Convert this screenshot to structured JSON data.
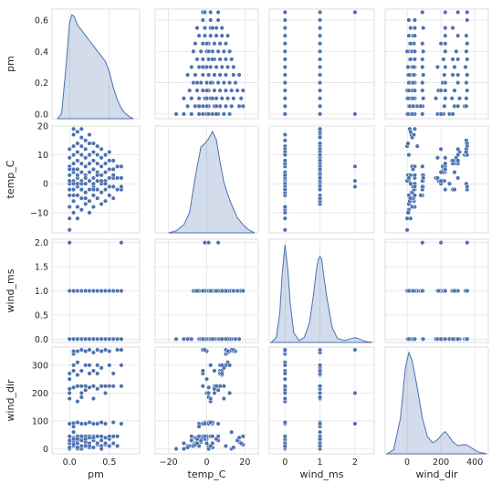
{
  "chart_data": {
    "type": "scatter",
    "grid": true,
    "variables": [
      {
        "name": "pm",
        "label": "pm",
        "lim": [
          -0.22,
          0.88
        ],
        "ticks": [
          0.0,
          0.5
        ],
        "tick_labels": [
          "0.0",
          "0.5"
        ],
        "row_ticks": [
          0.0,
          0.2,
          0.4,
          0.6
        ],
        "row_tick_labels": [
          "0.0",
          "0.2",
          "0.4",
          "0.6"
        ]
      },
      {
        "name": "temp_C",
        "label": "temp_C",
        "lim": [
          -27,
          27
        ],
        "ticks": [
          -20,
          0,
          20
        ],
        "tick_labels": [
          "−20",
          "0",
          "20"
        ],
        "row_ticks": [
          -10,
          0,
          10,
          20
        ],
        "row_tick_labels": [
          "−10",
          "0",
          "10",
          "20"
        ]
      },
      {
        "name": "wind_ms",
        "label": "wind_ms",
        "lim": [
          -0.45,
          2.55
        ],
        "ticks": [
          0,
          1,
          2
        ],
        "tick_labels": [
          "0",
          "1",
          "2"
        ],
        "row_ticks": [
          0.0,
          0.5,
          1.0,
          1.5,
          2.0
        ],
        "row_tick_labels": [
          "0.0",
          "0.5",
          "1.0",
          "1.5",
          "2.0"
        ]
      },
      {
        "name": "wind_dir",
        "label": "wind_dir",
        "lim": [
          -130,
          480
        ],
        "ticks": [
          0,
          200,
          400
        ],
        "tick_labels": [
          "0",
          "200",
          "400"
        ],
        "row_ticks": [
          0,
          100,
          200,
          300
        ],
        "row_tick_labels": [
          "0",
          "100",
          "200",
          "300"
        ]
      }
    ],
    "row_lims": [
      [
        -0.03,
        0.67
      ],
      [
        -17,
        20
      ],
      [
        -0.07,
        2.07
      ],
      [
        -18,
        365
      ]
    ],
    "points": {
      "pm": [
        0.0,
        0.0,
        0.0,
        0.0,
        0.0,
        0.0,
        0.0,
        0.0,
        0.0,
        0.0,
        0.0,
        0.05,
        0.05,
        0.05,
        0.05,
        0.05,
        0.05,
        0.05,
        0.05,
        0.05,
        0.05,
        0.05,
        0.05,
        0.1,
        0.1,
        0.1,
        0.1,
        0.1,
        0.1,
        0.1,
        0.1,
        0.1,
        0.1,
        0.1,
        0.1,
        0.15,
        0.15,
        0.15,
        0.15,
        0.15,
        0.15,
        0.15,
        0.15,
        0.15,
        0.15,
        0.15,
        0.2,
        0.2,
        0.2,
        0.2,
        0.2,
        0.2,
        0.2,
        0.2,
        0.2,
        0.2,
        0.25,
        0.25,
        0.25,
        0.25,
        0.25,
        0.25,
        0.25,
        0.25,
        0.25,
        0.25,
        0.3,
        0.3,
        0.3,
        0.3,
        0.3,
        0.3,
        0.3,
        0.3,
        0.3,
        0.35,
        0.35,
        0.35,
        0.35,
        0.35,
        0.35,
        0.35,
        0.35,
        0.4,
        0.4,
        0.4,
        0.4,
        0.4,
        0.4,
        0.4,
        0.4,
        0.45,
        0.45,
        0.45,
        0.45,
        0.45,
        0.45,
        0.45,
        0.5,
        0.5,
        0.5,
        0.5,
        0.5,
        0.5,
        0.55,
        0.55,
        0.55,
        0.55,
        0.55,
        0.6,
        0.6,
        0.6,
        0.65,
        0.65,
        0.65,
        0.0,
        0.05,
        0.15,
        0.3,
        0.55,
        0.65
      ],
      "temp_C": [
        -16,
        -12,
        -8,
        -4,
        0,
        3,
        6,
        9,
        12,
        5,
        -2,
        -10,
        -6,
        -2,
        1,
        4,
        7,
        10,
        13,
        17,
        19,
        0,
        -4,
        -12,
        -8,
        -4,
        -1,
        2,
        5,
        8,
        11,
        14,
        18,
        0,
        3,
        -9,
        -5,
        -2,
        1,
        4,
        7,
        10,
        13,
        16,
        19,
        0,
        -7,
        -3,
        0,
        3,
        6,
        9,
        12,
        15,
        2,
        -5,
        -10,
        -6,
        -2,
        1,
        4,
        7,
        10,
        14,
        17,
        1,
        -8,
        -4,
        -1,
        2,
        5,
        8,
        11,
        14,
        0,
        -5,
        -2,
        1,
        4,
        7,
        10,
        13,
        3,
        -7,
        -3,
        0,
        3,
        6,
        9,
        12,
        1,
        -6,
        -2,
        1,
        4,
        7,
        10,
        0,
        -4,
        -1,
        2,
        5,
        8,
        11,
        -5,
        -1,
        2,
        5,
        8,
        -2,
        2,
        6,
        -2,
        2,
        6,
        1,
        5,
        10,
        -2,
        3,
        -1
      ],
      "wind_ms": [
        0,
        0,
        0,
        0,
        0,
        1,
        1,
        1,
        1,
        1,
        0,
        0,
        1,
        1,
        0,
        1,
        1,
        0,
        1,
        1,
        1,
        0,
        1,
        0,
        0,
        1,
        1,
        0,
        1,
        1,
        0,
        1,
        1,
        1,
        0,
        0,
        1,
        0,
        1,
        1,
        0,
        1,
        1,
        1,
        1,
        0,
        1,
        0,
        1,
        1,
        0,
        1,
        1,
        0,
        1,
        1,
        0,
        1,
        0,
        1,
        1,
        0,
        1,
        1,
        0,
        1,
        0,
        1,
        1,
        0,
        1,
        0,
        1,
        1,
        0,
        1,
        0,
        1,
        1,
        0,
        1,
        0,
        1,
        1,
        0,
        1,
        0,
        1,
        1,
        0,
        1,
        1,
        0,
        1,
        0,
        1,
        1,
        0,
        1,
        0,
        1,
        1,
        0,
        0,
        1,
        1,
        0,
        1,
        1,
        0,
        1,
        1,
        0,
        1,
        2,
        2,
        1,
        0,
        1,
        0,
        2
      ],
      "wind_dir": [
        0,
        20,
        45,
        90,
        250,
        5,
        30,
        180,
        200,
        215,
        270,
        10,
        40,
        92,
        220,
        280,
        300,
        340,
        60,
        25,
        15,
        350,
        80,
        0,
        30,
        45,
        95,
        170,
        225,
        265,
        310,
        350,
        20,
        35,
        5,
        10,
        40,
        90,
        185,
        225,
        280,
        355,
        0,
        30,
        45,
        200,
        15,
        25,
        45,
        90,
        210,
        225,
        300,
        350,
        10,
        35,
        5,
        20,
        45,
        95,
        220,
        270,
        300,
        355,
        40,
        10,
        30,
        45,
        90,
        180,
        225,
        280,
        345,
        5,
        40,
        15,
        45,
        90,
        215,
        270,
        300,
        355,
        20,
        10,
        30,
        45,
        95,
        225,
        290,
        350,
        0,
        15,
        40,
        90,
        200,
        225,
        355,
        20,
        10,
        35,
        45,
        225,
        300,
        350,
        20,
        45,
        95,
        225,
        270,
        355,
        10,
        45,
        225,
        300,
        90,
        200,
        35,
        10,
        280,
        45,
        355
      ]
    },
    "kde": {
      "pm": {
        "x": [
          -0.15,
          -0.1,
          -0.05,
          0.0,
          0.03,
          0.06,
          0.1,
          0.15,
          0.2,
          0.25,
          0.3,
          0.35,
          0.4,
          0.45,
          0.5,
          0.55,
          0.6,
          0.65,
          0.7,
          0.75,
          0.8
        ],
        "y": [
          0.0,
          0.05,
          0.45,
          0.92,
          1.0,
          0.98,
          0.9,
          0.85,
          0.8,
          0.75,
          0.7,
          0.65,
          0.6,
          0.55,
          0.45,
          0.3,
          0.18,
          0.1,
          0.05,
          0.02,
          0.0
        ]
      },
      "temp_C": {
        "x": [
          -20,
          -16,
          -12,
          -9,
          -6,
          -3,
          -1,
          1,
          3,
          5,
          7,
          9,
          11,
          13,
          16,
          19,
          22,
          25
        ],
        "y": [
          0.0,
          0.02,
          0.08,
          0.2,
          0.55,
          0.85,
          0.88,
          0.93,
          1.0,
          0.92,
          0.7,
          0.5,
          0.38,
          0.28,
          0.15,
          0.08,
          0.03,
          0.0
        ]
      },
      "wind_ms": {
        "x": [
          -0.4,
          -0.25,
          -0.15,
          -0.08,
          0.0,
          0.08,
          0.15,
          0.25,
          0.4,
          0.55,
          0.7,
          0.8,
          0.9,
          0.95,
          1.0,
          1.05,
          1.1,
          1.2,
          1.35,
          1.5,
          1.7,
          1.9,
          2.0,
          2.1,
          2.3,
          2.5
        ],
        "y": [
          0.0,
          0.05,
          0.3,
          0.7,
          1.0,
          0.75,
          0.4,
          0.1,
          0.02,
          0.05,
          0.2,
          0.45,
          0.75,
          0.85,
          0.88,
          0.85,
          0.7,
          0.45,
          0.15,
          0.04,
          0.02,
          0.04,
          0.05,
          0.04,
          0.01,
          0.0
        ]
      },
      "wind_dir": {
        "x": [
          -120,
          -80,
          -40,
          -10,
          10,
          30,
          60,
          90,
          120,
          150,
          180,
          210,
          225,
          240,
          270,
          300,
          330,
          350,
          380,
          420,
          470
        ],
        "y": [
          0.0,
          0.04,
          0.35,
          0.85,
          1.0,
          0.92,
          0.65,
          0.35,
          0.17,
          0.11,
          0.14,
          0.2,
          0.22,
          0.19,
          0.12,
          0.08,
          0.09,
          0.09,
          0.06,
          0.02,
          0.0
        ]
      }
    }
  }
}
